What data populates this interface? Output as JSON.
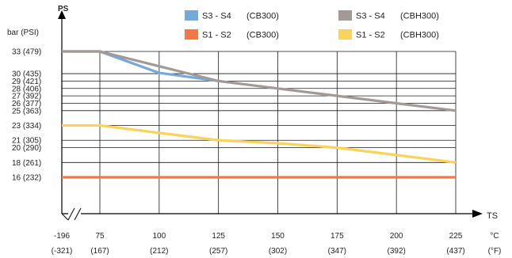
{
  "chart_data": {
    "type": "line",
    "y_axis": {
      "title": "PS",
      "unit_label": "bar (PSI)",
      "ticks": [
        {
          "value": 33,
          "label": "33  (479)"
        },
        {
          "value": 30,
          "label": "30  (435)"
        },
        {
          "value": 29,
          "label": "29  (421)"
        },
        {
          "value": 28,
          "label": "28  (406)"
        },
        {
          "value": 27,
          "label": "27  (392)"
        },
        {
          "value": 26,
          "label": "26  (377)"
        },
        {
          "value": 25,
          "label": "25  (363)"
        },
        {
          "value": 23,
          "label": "23  (334)"
        },
        {
          "value": 21,
          "label": "21  (305)"
        },
        {
          "value": 20,
          "label": "20  (290)"
        },
        {
          "value": 18,
          "label": "18  (261)"
        },
        {
          "value": 16,
          "label": "16  (232)"
        }
      ]
    },
    "x_axis": {
      "title": "TS",
      "unit_c": "°C",
      "unit_f": "(°F)",
      "ticks": [
        {
          "value": -196,
          "label_c": "-196",
          "label_f": "(-321)"
        },
        {
          "value": 75,
          "label_c": "75",
          "label_f": "(167)"
        },
        {
          "value": 100,
          "label_c": "100",
          "label_f": "(212)"
        },
        {
          "value": 125,
          "label_c": "125",
          "label_f": "(257)"
        },
        {
          "value": 150,
          "label_c": "150",
          "label_f": "(302)"
        },
        {
          "value": 175,
          "label_c": "175",
          "label_f": "(347)"
        },
        {
          "value": 200,
          "label_c": "200",
          "label_f": "(392)"
        },
        {
          "value": 225,
          "label_c": "225",
          "label_f": "(437)"
        }
      ],
      "axis_break": true
    },
    "grid": true,
    "legend_position": "top",
    "series": [
      {
        "name": "S3 - S4",
        "grade": "(CB300)",
        "color": "#74a9dc",
        "points": [
          [
            -196,
            33
          ],
          [
            75,
            33
          ],
          [
            100,
            30.1
          ],
          [
            125,
            29
          ]
        ]
      },
      {
        "name": "S1 - S2",
        "grade": "(CB300)",
        "color": "#f0784a",
        "points": [
          [
            -196,
            16
          ],
          [
            225,
            16
          ]
        ]
      },
      {
        "name": "S3 - S4",
        "grade": "(CBH300)",
        "color": "#a39a95",
        "points": [
          [
            -196,
            33
          ],
          [
            75,
            33
          ],
          [
            100,
            31
          ],
          [
            125,
            29
          ],
          [
            150,
            28
          ],
          [
            175,
            27
          ],
          [
            200,
            26
          ],
          [
            225,
            25
          ]
        ]
      },
      {
        "name": "S1 - S2",
        "grade": "(CBH300)",
        "color": "#fad35a",
        "points": [
          [
            -196,
            23
          ],
          [
            75,
            23
          ],
          [
            100,
            22
          ],
          [
            125,
            21
          ],
          [
            150,
            20.6
          ],
          [
            175,
            20
          ],
          [
            200,
            19
          ],
          [
            225,
            18
          ]
        ]
      }
    ]
  }
}
